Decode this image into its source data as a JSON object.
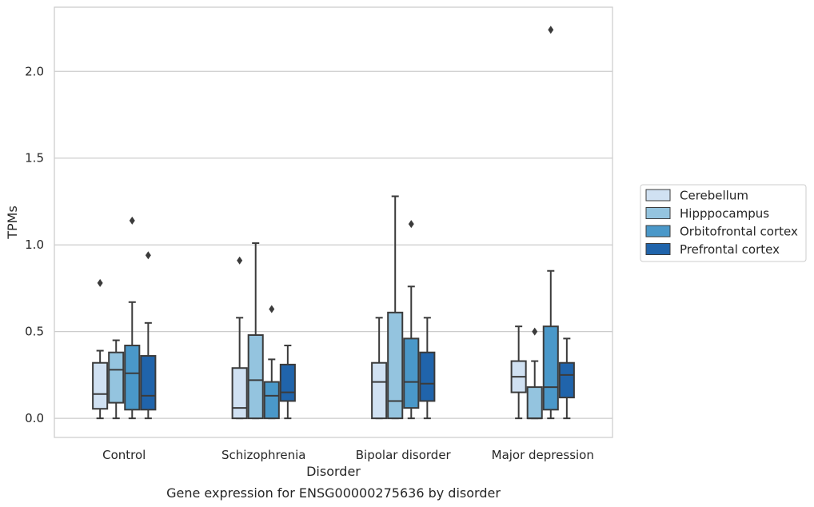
{
  "chart_data": {
    "type": "box",
    "title": "",
    "caption": "Gene expression for ENSG00000275636 by disorder",
    "xlabel": "Disorder",
    "ylabel": "TPMs",
    "ylim": [
      -0.11,
      2.37
    ],
    "yticks": [
      0.0,
      0.5,
      1.0,
      1.5,
      2.0
    ],
    "ytick_labels": [
      "0.0",
      "0.5",
      "1.0",
      "1.5",
      "2.0"
    ],
    "grid": "horizontal",
    "legend_position": "right",
    "categories": [
      "Control",
      "Schizophrenia",
      "Bipolar disorder",
      "Major depression"
    ],
    "series": [
      {
        "name": "Cerebellum",
        "color": "#d0e1f2",
        "boxes": [
          {
            "whislo": 0.0,
            "q1": 0.055,
            "med": 0.14,
            "q3": 0.32,
            "whishi": 0.39,
            "fliers": [
              0.78
            ]
          },
          {
            "whislo": 0.0,
            "q1": 0.0,
            "med": 0.06,
            "q3": 0.29,
            "whishi": 0.58,
            "fliers": [
              0.91
            ]
          },
          {
            "whislo": 0.0,
            "q1": 0.0,
            "med": 0.21,
            "q3": 0.32,
            "whishi": 0.58,
            "fliers": []
          },
          {
            "whislo": 0.0,
            "q1": 0.15,
            "med": 0.24,
            "q3": 0.33,
            "whishi": 0.53,
            "fliers": []
          }
        ]
      },
      {
        "name": "Hipppocampus",
        "color": "#94c4df",
        "boxes": [
          {
            "whislo": 0.0,
            "q1": 0.09,
            "med": 0.28,
            "q3": 0.38,
            "whishi": 0.45,
            "fliers": []
          },
          {
            "whislo": 0.0,
            "q1": 0.0,
            "med": 0.22,
            "q3": 0.48,
            "whishi": 1.01,
            "fliers": []
          },
          {
            "whislo": 0.0,
            "q1": 0.0,
            "med": 0.1,
            "q3": 0.61,
            "whishi": 1.28,
            "fliers": []
          },
          {
            "whislo": 0.0,
            "q1": 0.0,
            "med": 0.0,
            "q3": 0.18,
            "whishi": 0.33,
            "fliers": [
              0.5
            ]
          }
        ]
      },
      {
        "name": "Orbitofrontal cortex",
        "color": "#4a98c9",
        "boxes": [
          {
            "whislo": 0.0,
            "q1": 0.05,
            "med": 0.26,
            "q3": 0.42,
            "whishi": 0.67,
            "fliers": [
              1.14
            ]
          },
          {
            "whislo": 0.0,
            "q1": 0.0,
            "med": 0.13,
            "q3": 0.21,
            "whishi": 0.34,
            "fliers": [
              0.63
            ]
          },
          {
            "whislo": 0.0,
            "q1": 0.06,
            "med": 0.21,
            "q3": 0.46,
            "whishi": 0.76,
            "fliers": [
              1.12
            ]
          },
          {
            "whislo": 0.0,
            "q1": 0.05,
            "med": 0.18,
            "q3": 0.53,
            "whishi": 0.85,
            "fliers": [
              2.24
            ]
          }
        ]
      },
      {
        "name": "Prefrontal cortex",
        "color": "#2064ab",
        "boxes": [
          {
            "whislo": 0.0,
            "q1": 0.05,
            "med": 0.13,
            "q3": 0.36,
            "whishi": 0.55,
            "fliers": [
              0.94
            ]
          },
          {
            "whislo": 0.0,
            "q1": 0.1,
            "med": 0.15,
            "q3": 0.31,
            "whishi": 0.42,
            "fliers": []
          },
          {
            "whislo": 0.0,
            "q1": 0.1,
            "med": 0.2,
            "q3": 0.38,
            "whishi": 0.58,
            "fliers": []
          },
          {
            "whislo": 0.0,
            "q1": 0.12,
            "med": 0.25,
            "q3": 0.32,
            "whishi": 0.46,
            "fliers": []
          }
        ]
      }
    ]
  }
}
